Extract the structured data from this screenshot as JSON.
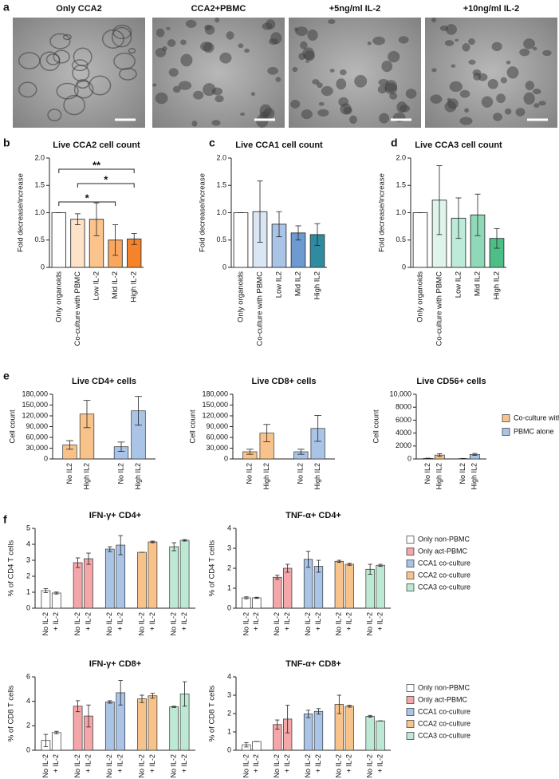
{
  "panel_labels": [
    "a",
    "b",
    "c",
    "d",
    "e",
    "f"
  ],
  "image_panel": {
    "titles": [
      "Only CCA2",
      "CCA2+PBMC",
      "+5ng/ml IL-2",
      "+10ng/ml IL-2"
    ]
  },
  "chart_data": [
    {
      "type": "bar",
      "title": "Live CCA2 cell count",
      "y_label": "Fold decrease/increase",
      "categories": [
        "Only organoids",
        "Co-culture with PBMC",
        "Low IL-2",
        "Mid IL-2",
        "High IL-2"
      ],
      "values": [
        1.0,
        0.88,
        0.88,
        0.5,
        0.52
      ],
      "errors": [
        0,
        0.1,
        0.3,
        0.28,
        0.1
      ],
      "colors": [
        "#ffffff",
        "#fde2c8",
        "#fbc48c",
        "#f9a65e",
        "#f4832a"
      ],
      "ylim": [
        0,
        2
      ],
      "yticks": [
        0,
        0.5,
        {
          "value": 1,
          "label": "1.0"
        },
        1.5,
        {
          "value": 2,
          "label": "2.0"
        }
      ],
      "annotations": [
        "**",
        "*",
        "*"
      ]
    },
    {
      "type": "bar",
      "title": "Live CCA1 cell count",
      "y_label": "Fold decrease/increase",
      "categories": [
        "Only organoids",
        "Co-culture with PBMC",
        "Low IL2",
        "Mid IL2",
        "High IL2"
      ],
      "values": [
        1.0,
        1.02,
        0.79,
        0.63,
        0.6
      ],
      "errors": [
        0,
        0.56,
        0.23,
        0.13,
        0.2
      ],
      "colors": [
        "#ffffff",
        "#dbe6f4",
        "#a9c4e6",
        "#6e9ad2",
        "#2f8ba0"
      ],
      "ylim": [
        0,
        2
      ],
      "yticks": [
        0,
        0.5,
        {
          "value": 1,
          "label": "1.0"
        },
        1.5,
        {
          "value": 2,
          "label": "2.0"
        }
      ]
    },
    {
      "type": "bar",
      "title": "Live CCA3 cell count",
      "y_label": "Fold decrease/increase",
      "categories": [
        "Only organoids",
        "Co-culture with PBMC",
        "Low IL2",
        "Mid IL2",
        "High IL2"
      ],
      "values": [
        1.0,
        1.23,
        0.9,
        0.96,
        0.53
      ],
      "errors": [
        0,
        0.63,
        0.37,
        0.38,
        0.18
      ],
      "colors": [
        "#ffffff",
        "#dff5ec",
        "#bdebd9",
        "#8fd9b9",
        "#4dbf86"
      ],
      "ylim": [
        0,
        2
      ],
      "yticks": [
        0,
        0.5,
        {
          "value": 1,
          "label": "1.0"
        },
        1.5,
        {
          "value": 2,
          "label": "2.0"
        }
      ]
    },
    {
      "type": "bar",
      "title": "Live CD4+ cells",
      "y_label": "Cell count",
      "categories": [
        "No IL2",
        "High IL2"
      ],
      "series": [
        {
          "color": "#f8c38a",
          "values": [
            39000,
            125000
          ],
          "errors": [
            12000,
            38000
          ]
        },
        {
          "color": "#a9c4e6",
          "values": [
            34000,
            134000
          ],
          "errors": [
            13000,
            40000
          ]
        }
      ],
      "ylim": [
        0,
        180000
      ],
      "yticks": [
        0,
        {
          "value": 30000,
          "label": "30,000"
        },
        {
          "value": 60000,
          "label": "60,000"
        },
        {
          "value": 90000,
          "label": "90,000"
        },
        {
          "value": 120000,
          "label": "120,000"
        },
        {
          "value": 150000,
          "label": "150,000"
        },
        {
          "value": 180000,
          "label": "180,000"
        }
      ]
    },
    {
      "type": "bar",
      "title": "Live CD8+ cells",
      "y_label": "Cell count",
      "categories": [
        "No IL2",
        "High IL2"
      ],
      "series": [
        {
          "color": "#f8c38a",
          "values": [
            20000,
            72000
          ],
          "errors": [
            7000,
            24000
          ]
        },
        {
          "color": "#a9c4e6",
          "values": [
            20000,
            85000
          ],
          "errors": [
            7000,
            36000
          ]
        }
      ],
      "ylim": [
        0,
        180000
      ],
      "yticks": [
        0,
        {
          "value": 30000,
          "label": "30,000"
        },
        {
          "value": 60000,
          "label": "60,000"
        },
        {
          "value": 90000,
          "label": "90,000"
        },
        {
          "value": 120000,
          "label": "120,000"
        },
        {
          "value": 150000,
          "label": "150,000"
        },
        {
          "value": 180000,
          "label": "180,000"
        }
      ]
    },
    {
      "type": "bar",
      "title": "Live CD56+ cells",
      "y_label": "Cell count",
      "categories": [
        "No IL2",
        "High IL2"
      ],
      "series": [
        {
          "name": "Co-culture with PBMC",
          "color": "#f8c38a",
          "values": [
            80,
            600
          ],
          "errors": [
            40,
            200
          ]
        },
        {
          "name": "PBMC alone",
          "color": "#a9c4e6",
          "values": [
            50,
            700
          ],
          "errors": [
            30,
            150
          ]
        }
      ],
      "ylim": [
        0,
        10000
      ],
      "yticks": [
        0,
        2000,
        4000,
        6000,
        8000,
        {
          "value": 10000,
          "label": "10,000"
        }
      ],
      "legend": "right"
    },
    {
      "type": "bar",
      "title": "IFN-γ+ CD4+",
      "y_label": "% of CD4 T cells",
      "categories": [
        "No IL-2",
        "+ IL-2"
      ],
      "series": [
        {
          "color": "#ffffff",
          "values": [
            1.1,
            0.95
          ],
          "errors": [
            0.12,
            0.06
          ]
        },
        {
          "color": "#f4a6a8",
          "values": [
            2.85,
            3.1
          ],
          "errors": [
            0.3,
            0.35
          ]
        },
        {
          "color": "#a9c4e6",
          "values": [
            3.7,
            3.95
          ],
          "errors": [
            0.15,
            0.6
          ]
        },
        {
          "color": "#f8c38a",
          "values": [
            3.5,
            4.15
          ],
          "errors": [
            0,
            0.05
          ]
        },
        {
          "color": "#bde8d3",
          "values": [
            3.85,
            4.25
          ],
          "errors": [
            0.25,
            0.05
          ]
        }
      ],
      "ylim": [
        0,
        5
      ],
      "yticks": [
        0,
        1,
        2,
        3,
        4,
        5
      ]
    },
    {
      "type": "bar",
      "title": "TNF-α+ CD4+",
      "y_label": "% of CD4 T cells",
      "categories": [
        "No IL-2",
        "+ IL-2"
      ],
      "series": [
        {
          "name": "Only non-PBMC",
          "color": "#ffffff",
          "values": [
            0.52,
            0.52
          ],
          "errors": [
            0.05,
            0.03
          ]
        },
        {
          "name": "Only act-PBMC",
          "color": "#f4a6a8",
          "values": [
            1.55,
            2.0
          ],
          "errors": [
            0.1,
            0.2
          ]
        },
        {
          "name": "CCA1 co-culture",
          "color": "#a9c4e6",
          "values": [
            2.45,
            2.1
          ],
          "errors": [
            0.4,
            0.3
          ]
        },
        {
          "name": "CCA2 co-culture",
          "color": "#f8c38a",
          "values": [
            2.35,
            2.2
          ],
          "errors": [
            0.05,
            0.05
          ]
        },
        {
          "name": "CCA3 co-culture",
          "color": "#bde8d3",
          "values": [
            1.95,
            2.15
          ],
          "errors": [
            0.25,
            0.05
          ]
        }
      ],
      "ylim": [
        0,
        4
      ],
      "yticks": [
        0,
        1,
        2,
        3,
        4
      ],
      "legend": "right"
    },
    {
      "type": "bar",
      "title": "IFN-γ+ CD8+",
      "y_label": "% of CD8 T cells",
      "categories": [
        "No IL-2",
        "+ IL-2"
      ],
      "series": [
        {
          "color": "#ffffff",
          "values": [
            0.8,
            1.45
          ],
          "errors": [
            0.5,
            0.1
          ]
        },
        {
          "color": "#f4a6a8",
          "values": [
            3.6,
            2.8
          ],
          "errors": [
            0.45,
            0.9
          ]
        },
        {
          "color": "#a9c4e6",
          "values": [
            3.95,
            4.7
          ],
          "errors": [
            0.1,
            1.0
          ]
        },
        {
          "color": "#f8c38a",
          "values": [
            4.2,
            4.45
          ],
          "errors": [
            0.3,
            0.2
          ]
        },
        {
          "color": "#bde8d3",
          "values": [
            3.55,
            4.6
          ],
          "errors": [
            0.05,
            1.0
          ]
        }
      ],
      "ylim": [
        0,
        6
      ],
      "yticks": [
        0,
        2,
        4,
        6
      ]
    },
    {
      "type": "bar",
      "title": "TNF-α+ CD8+",
      "y_label": "% of CD8 T cells",
      "categories": [
        "No IL-2",
        "+ IL-2"
      ],
      "series": [
        {
          "name": "Only non-PBMC",
          "color": "#ffffff",
          "values": [
            0.3,
            0.48
          ],
          "errors": [
            0.12,
            0
          ]
        },
        {
          "name": "Only act-PBMC",
          "color": "#f4a6a8",
          "values": [
            1.4,
            1.7
          ],
          "errors": [
            0.25,
            0.75
          ]
        },
        {
          "name": "CCA1 co-culture",
          "color": "#a9c4e6",
          "values": [
            1.98,
            2.12
          ],
          "errors": [
            0.2,
            0.15
          ]
        },
        {
          "name": "CCA2 co-culture",
          "color": "#f8c38a",
          "values": [
            2.5,
            2.4
          ],
          "errors": [
            0.5,
            0.05
          ]
        },
        {
          "name": "CCA3 co-culture",
          "color": "#bde8d3",
          "values": [
            1.85,
            1.6
          ],
          "errors": [
            0.05,
            0
          ]
        }
      ],
      "ylim": [
        0,
        4
      ],
      "yticks": [
        0,
        1,
        2,
        3,
        4
      ],
      "legend": "right"
    }
  ]
}
